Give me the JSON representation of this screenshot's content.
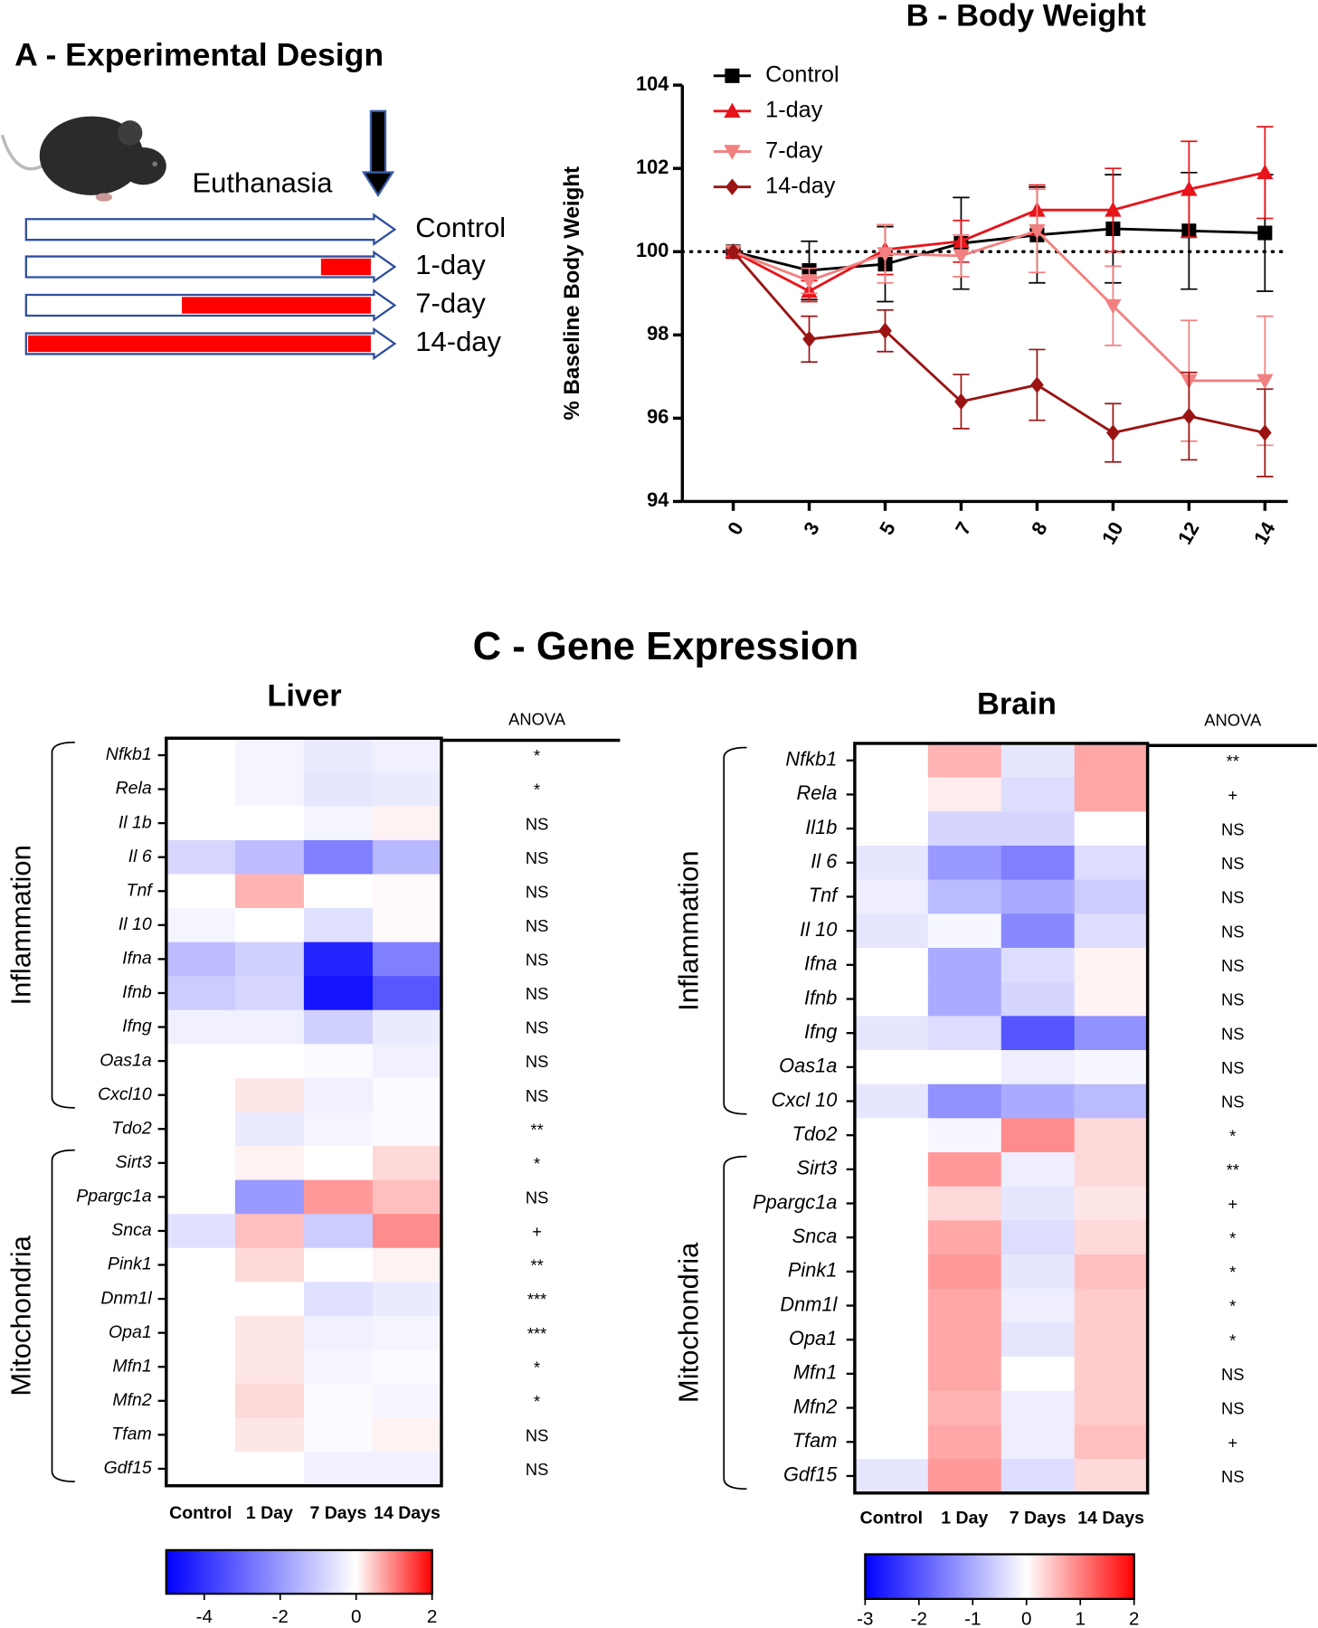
{
  "panel_a": {
    "title": "A - Experimental Design",
    "event": "Euthanasia",
    "arms": [
      "Control",
      "1-day",
      "7-day",
      "14-day"
    ]
  },
  "panel_c": {
    "title": "C - Gene Expression"
  },
  "chart_data": [
    {
      "type": "line",
      "title": "B - Body Weight",
      "y_label": "% Baseline Body Weight",
      "categories": [
        "0",
        "3",
        "5",
        "7",
        "8",
        "10",
        "12",
        "14"
      ],
      "ylim": [
        94,
        104
      ],
      "yticks": [
        94,
        96,
        98,
        100,
        102,
        104
      ],
      "refline": 100,
      "legend": "top-left",
      "series": [
        {
          "name": "Control",
          "color": "#000000",
          "marker": "square",
          "values": [
            100,
            99.55,
            99.7,
            100.2,
            100.4,
            100.55,
            100.5,
            100.45
          ],
          "errors": [
            0,
            0.7,
            0.9,
            1.1,
            1.15,
            1.3,
            1.4,
            1.4
          ]
        },
        {
          "name": "1-day",
          "color": "#e8141b",
          "marker": "triangle-up",
          "values": [
            100,
            99.05,
            100.05,
            100.25,
            101.0,
            101.0,
            101.5,
            101.9
          ],
          "errors": [
            0,
            0.25,
            0.6,
            0.5,
            0.6,
            1.0,
            1.15,
            1.1
          ]
        },
        {
          "name": "7-day",
          "color": "#f28080",
          "marker": "triangle-down",
          "values": [
            100,
            99.3,
            99.95,
            99.9,
            100.5,
            98.7,
            96.9,
            96.9
          ],
          "errors": [
            0,
            0.3,
            0.7,
            0.5,
            1.0,
            0.95,
            1.45,
            1.55
          ]
        },
        {
          "name": "14-day",
          "color": "#9b1414",
          "marker": "diamond",
          "values": [
            100,
            97.9,
            98.1,
            96.4,
            96.8,
            95.65,
            96.05,
            95.65
          ],
          "errors": [
            0,
            0.55,
            0.5,
            0.65,
            0.85,
            0.7,
            1.05,
            1.05
          ]
        }
      ]
    },
    {
      "type": "heatmap",
      "title": "Liver",
      "anova_title": "ANOVA",
      "columns": [
        "Control",
        "1 Day",
        "7 Days",
        "14 Days"
      ],
      "rows": [
        "Nfkb1",
        "Rela",
        "Il 1b",
        "Il 6",
        "Tnf",
        "Il 10",
        "Ifna",
        "Ifnb",
        "Ifng",
        "Oas1a",
        "Cxcl10",
        "Tdo2",
        "Sirt3",
        "Ppargc1a",
        "Snca",
        "Pink1",
        "Dnm1l",
        "Opa1",
        "Mfn1",
        "Mfn2",
        "Tfam",
        "Gdf15"
      ],
      "anova": [
        "*",
        "*",
        "NS",
        "NS",
        "NS",
        "NS",
        "NS",
        "NS",
        "NS",
        "NS",
        "NS",
        "**",
        "*",
        "NS",
        "+",
        "**",
        "***",
        "***",
        "*",
        "*",
        "NS",
        "NS"
      ],
      "groups": [
        "Inflammation",
        "Mitochondria"
      ],
      "values": [
        [
          0,
          -0.2,
          -0.4,
          -0.3
        ],
        [
          0,
          -0.2,
          -0.5,
          -0.4
        ],
        [
          0,
          0,
          -0.2,
          0.1
        ],
        [
          -0.8,
          -1.3,
          -2.5,
          -1.4
        ],
        [
          0,
          0.6,
          0,
          0.05
        ],
        [
          -0.2,
          0,
          -0.6,
          0.05
        ],
        [
          -1.3,
          -0.9,
          -4.3,
          -2.5
        ],
        [
          -1.0,
          -0.8,
          -4.6,
          -3.3
        ],
        [
          -0.3,
          -0.3,
          -0.9,
          -0.4
        ],
        [
          0,
          0,
          -0.1,
          -0.3
        ],
        [
          0,
          0.2,
          -0.3,
          -0.1
        ],
        [
          0,
          -0.4,
          -0.2,
          -0.1
        ],
        [
          0,
          0.1,
          0,
          0.3
        ],
        [
          0,
          -2.0,
          0.8,
          0.5
        ],
        [
          -0.6,
          0.5,
          -1.0,
          0.9
        ],
        [
          0,
          0.3,
          0,
          0.1
        ],
        [
          0,
          0,
          -0.6,
          -0.4
        ],
        [
          0,
          0.2,
          -0.3,
          -0.2
        ],
        [
          0,
          0.2,
          -0.2,
          -0.1
        ],
        [
          0,
          0.3,
          -0.1,
          -0.2
        ],
        [
          0,
          0.2,
          -0.1,
          0.1
        ],
        [
          0,
          0,
          -0.3,
          -0.3
        ]
      ],
      "clim": [
        -5,
        2
      ],
      "cticks": [
        -4,
        -2,
        0,
        2
      ]
    },
    {
      "type": "heatmap",
      "title": "Brain",
      "anova_title": "ANOVA",
      "columns": [
        "Control",
        "1 Day",
        "7 Days",
        "14 Days"
      ],
      "rows": [
        "Nfkb1",
        "Rela",
        "Il1b",
        "Il 6",
        "Tnf",
        "Il 10",
        "Ifna",
        "Ifnb",
        "Ifng",
        "Oas1a",
        "Cxcl 10",
        "Tdo2",
        "Sirt3",
        "Ppargc1a",
        "Snca",
        "Pink1",
        "Dnm1l",
        "Opa1",
        "Mfn1",
        "Mfn2",
        "Tfam",
        "Gdf15"
      ],
      "anova": [
        "**",
        "+",
        "NS",
        "NS",
        "NS",
        "NS",
        "NS",
        "NS",
        "NS",
        "NS",
        "NS",
        "*",
        "**",
        "+",
        "*",
        "*",
        "*",
        "*",
        "NS",
        "NS",
        "+",
        "NS"
      ],
      "groups": [
        "Inflammation",
        "Mitochondria"
      ],
      "values": [
        [
          0,
          0.6,
          -0.3,
          0.7
        ],
        [
          0,
          0.15,
          -0.4,
          0.7
        ],
        [
          0,
          -0.5,
          -0.5,
          0
        ],
        [
          -0.3,
          -1.2,
          -1.5,
          -0.4
        ],
        [
          -0.2,
          -0.8,
          -1.0,
          -0.6
        ],
        [
          -0.3,
          -0.1,
          -1.4,
          -0.4
        ],
        [
          0,
          -1.0,
          -0.4,
          0.1
        ],
        [
          0,
          -1.0,
          -0.5,
          0.1
        ],
        [
          -0.3,
          -0.4,
          -2.0,
          -1.3
        ],
        [
          0,
          0,
          -0.2,
          -0.1
        ],
        [
          -0.3,
          -1.3,
          -1.0,
          -0.8
        ],
        [
          0,
          -0.1,
          0.9,
          0.3
        ],
        [
          0,
          0.8,
          -0.2,
          0.3
        ],
        [
          0,
          0.3,
          -0.3,
          0.2
        ],
        [
          0,
          0.7,
          -0.4,
          0.3
        ],
        [
          0,
          0.8,
          -0.3,
          0.5
        ],
        [
          0,
          0.7,
          -0.2,
          0.4
        ],
        [
          0,
          0.7,
          -0.3,
          0.4
        ],
        [
          0,
          0.7,
          0,
          0.4
        ],
        [
          0,
          0.6,
          -0.2,
          0.4
        ],
        [
          0,
          0.7,
          -0.2,
          0.5
        ],
        [
          -0.3,
          0.8,
          -0.4,
          0.3
        ]
      ],
      "clim": [
        -3,
        2
      ],
      "cticks": [
        -3,
        -2,
        -1,
        0,
        1,
        2
      ]
    }
  ]
}
